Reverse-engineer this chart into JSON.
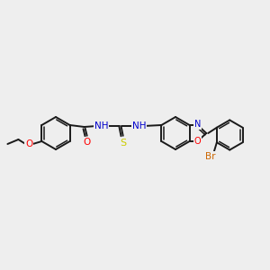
{
  "background_color": "#eeeeee",
  "bond_color": "#1a1a1a",
  "atom_colors": {
    "O": "#ff0000",
    "N": "#0000cc",
    "S": "#cccc00",
    "Br": "#cc6600",
    "C": "#1a1a1a",
    "H": "#1a1a1a"
  },
  "fig_width": 3.0,
  "fig_height": 3.0,
  "dpi": 100
}
